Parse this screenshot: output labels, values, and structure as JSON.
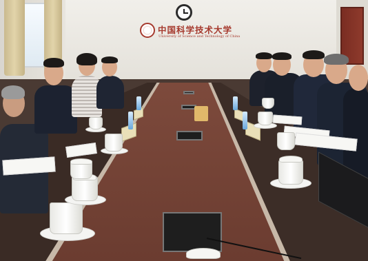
{
  "scene": {
    "description_label": "",
    "wall_sign": {
      "name_cn": "中国科学技术大学",
      "name_en": "University of Science and Technology of China"
    }
  },
  "colors": {
    "sign_red": "#a63a2e",
    "table_wood": "#6b3c30",
    "door": "#7a2d22"
  }
}
